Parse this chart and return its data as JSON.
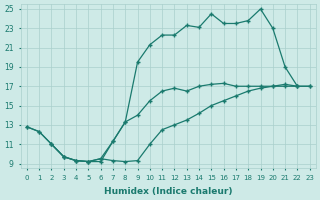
{
  "xlabel": "Humidex (Indice chaleur)",
  "xlim": [
    -0.5,
    23.5
  ],
  "ylim": [
    8.5,
    25.5
  ],
  "xticks": [
    0,
    1,
    2,
    3,
    4,
    5,
    6,
    7,
    8,
    9,
    10,
    11,
    12,
    13,
    14,
    15,
    16,
    17,
    18,
    19,
    20,
    21,
    22,
    23
  ],
  "yticks": [
    9,
    11,
    13,
    15,
    17,
    19,
    21,
    23,
    25
  ],
  "line_color": "#1a7a6e",
  "bg_color": "#ceeae7",
  "grid_color": "#aacfcc",
  "curve_upper_x": [
    0,
    1,
    2,
    3,
    4,
    5,
    6,
    7,
    8,
    9,
    10,
    11,
    12,
    13,
    14,
    15,
    16,
    17,
    18,
    19,
    20,
    21,
    22
  ],
  "curve_upper_y": [
    12.8,
    12.3,
    11.0,
    9.7,
    9.3,
    9.2,
    9.2,
    11.3,
    13.3,
    19.5,
    21.3,
    22.3,
    22.3,
    23.3,
    23.1,
    24.5,
    23.5,
    23.5,
    23.8,
    25.0,
    23.0,
    19.0,
    17.0
  ],
  "curve_lower_x": [
    2,
    3,
    4,
    5,
    6,
    7,
    8,
    9,
    10,
    11,
    12,
    13,
    14,
    15,
    16,
    17,
    18,
    19,
    20,
    21,
    22,
    23
  ],
  "curve_lower_y": [
    11.0,
    9.7,
    9.3,
    9.2,
    9.5,
    9.3,
    9.2,
    9.3,
    11.0,
    12.5,
    13.0,
    13.5,
    14.2,
    15.0,
    15.5,
    16.0,
    16.5,
    16.8,
    17.0,
    17.2,
    17.0,
    17.0
  ],
  "curve_mid_x": [
    0,
    1,
    2,
    3,
    4,
    5,
    6,
    7,
    8,
    9,
    10,
    11,
    12,
    13,
    14,
    15,
    16,
    17,
    18,
    19,
    20,
    21,
    22,
    23
  ],
  "curve_mid_y": [
    12.8,
    12.3,
    11.0,
    9.7,
    9.3,
    9.2,
    9.5,
    11.3,
    13.3,
    14.0,
    15.5,
    16.5,
    16.8,
    16.5,
    17.0,
    17.2,
    17.3,
    17.0,
    17.0,
    17.0,
    17.0,
    17.0,
    17.0,
    17.0
  ]
}
